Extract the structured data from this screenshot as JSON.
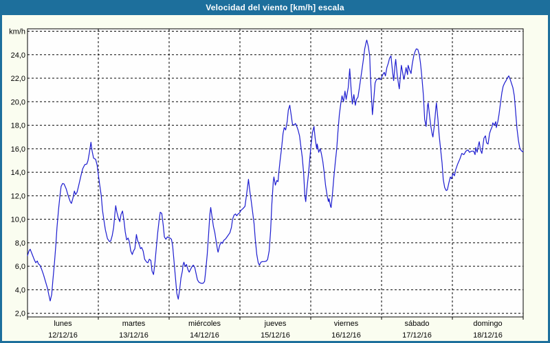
{
  "window": {
    "title": "Velocidad del viento [km/h] escala",
    "titlebar_color": "#1d6f9c",
    "panel_color": "#fafdf0"
  },
  "chart_data": {
    "type": "line",
    "title": "Velocidad del viento [km/h] escala",
    "unit_label": "km/h",
    "line_color": "#1b1bcf",
    "grid_color": "#000000",
    "plot_bg": "#fefefe",
    "ylim": [
      2,
      26
    ],
    "ytick_values": [
      24,
      22,
      20,
      18,
      16,
      14,
      12,
      10,
      8,
      6,
      4,
      2
    ],
    "ytick_labels": [
      "24,0",
      "22,0",
      "20,0",
      "18,0",
      "16,0",
      "14,0",
      "12,0",
      "10,0",
      "8,0",
      "6,0",
      "4,0",
      "2,0"
    ],
    "x_days": [
      {
        "day": "lunes",
        "date": "12/12/16"
      },
      {
        "day": "martes",
        "date": "13/12/16"
      },
      {
        "day": "miércoles",
        "date": "14/12/16"
      },
      {
        "day": "jueves",
        "date": "15/12/16"
      },
      {
        "day": "viernes",
        "date": "16/12/16"
      },
      {
        "day": "sábado",
        "date": "17/12/16"
      },
      {
        "day": "domingo",
        "date": "18/12/16"
      }
    ],
    "x_hours_range": [
      0,
      168
    ],
    "grid": "dashed",
    "points": [
      [
        0,
        6.9
      ],
      [
        0.5,
        7.3
      ],
      [
        0.9,
        7.45
      ],
      [
        1.6,
        7.0
      ],
      [
        2.3,
        6.55
      ],
      [
        2.8,
        6.3
      ],
      [
        3.3,
        6.45
      ],
      [
        3.7,
        6.2
      ],
      [
        4.2,
        6.1
      ],
      [
        4.7,
        5.8
      ],
      [
        5.4,
        5.3
      ],
      [
        6.1,
        4.7
      ],
      [
        6.8,
        4.1
      ],
      [
        7.2,
        3.6
      ],
      [
        7.7,
        3.05
      ],
      [
        8.2,
        3.6
      ],
      [
        8.6,
        4.8
      ],
      [
        9.1,
        6.2
      ],
      [
        9.6,
        7.8
      ],
      [
        10,
        9.3
      ],
      [
        10.5,
        10.8
      ],
      [
        11,
        12
      ],
      [
        11.4,
        12.8
      ],
      [
        11.9,
        13.05
      ],
      [
        12.4,
        13
      ],
      [
        13.1,
        12.6
      ],
      [
        13.8,
        12
      ],
      [
        14.5,
        11.5
      ],
      [
        14.9,
        11.35
      ],
      [
        15.4,
        11.8
      ],
      [
        15.9,
        12.4
      ],
      [
        16.3,
        12.1
      ],
      [
        16.8,
        12.3
      ],
      [
        17.3,
        12.8
      ],
      [
        18,
        13.6
      ],
      [
        18.7,
        14.3
      ],
      [
        19.4,
        14.65
      ],
      [
        20.1,
        14.7
      ],
      [
        20.5,
        15
      ],
      [
        21,
        15.7
      ],
      [
        21.5,
        16.55
      ],
      [
        21.9,
        15.8
      ],
      [
        22.4,
        15.2
      ],
      [
        23.1,
        15.1
      ],
      [
        23.6,
        14.6
      ],
      [
        24,
        13.8
      ],
      [
        24.5,
        12.9
      ],
      [
        25,
        12
      ],
      [
        25.4,
        10.8
      ],
      [
        25.9,
        9.9
      ],
      [
        26.4,
        9.1
      ],
      [
        27.1,
        8.35
      ],
      [
        27.8,
        8.1
      ],
      [
        28.2,
        8.15
      ],
      [
        28.7,
        8.6
      ],
      [
        29.2,
        9.3
      ],
      [
        29.6,
        10.4
      ],
      [
        29.9,
        11.15
      ],
      [
        30.3,
        10.6
      ],
      [
        30.8,
        10.1
      ],
      [
        31.3,
        9.8
      ],
      [
        31.7,
        10.4
      ],
      [
        32.2,
        10.7
      ],
      [
        32.7,
        9.9
      ],
      [
        33.1,
        8.95
      ],
      [
        33.6,
        8.25
      ],
      [
        34.1,
        8.4
      ],
      [
        34.5,
        8.1
      ],
      [
        35,
        7.3
      ],
      [
        35.5,
        7
      ],
      [
        35.9,
        7.3
      ],
      [
        36.4,
        7.5
      ],
      [
        36.9,
        8.7
      ],
      [
        37.3,
        8.2
      ],
      [
        37.8,
        7.9
      ],
      [
        38.3,
        7.5
      ],
      [
        38.7,
        7.6
      ],
      [
        39.2,
        7.3
      ],
      [
        39.7,
        6.6
      ],
      [
        40.4,
        6.35
      ],
      [
        40.8,
        6.3
      ],
      [
        41.3,
        6.6
      ],
      [
        41.8,
        6.5
      ],
      [
        42.2,
        5.6
      ],
      [
        42.7,
        5.3
      ],
      [
        43.2,
        6.3
      ],
      [
        43.6,
        7.4
      ],
      [
        44.1,
        8.8
      ],
      [
        44.6,
        9.9
      ],
      [
        45,
        10.6
      ],
      [
        45.5,
        10.5
      ],
      [
        46,
        9.5
      ],
      [
        46.4,
        8.5
      ],
      [
        46.9,
        8.3
      ],
      [
        47.4,
        8.5
      ],
      [
        47.8,
        8.45
      ],
      [
        48.3,
        8.4
      ],
      [
        48.8,
        8.3
      ],
      [
        49.2,
        7.7
      ],
      [
        49.7,
        6.3
      ],
      [
        50.2,
        4.9
      ],
      [
        50.6,
        3.7
      ],
      [
        51.1,
        3.2
      ],
      [
        51.6,
        4.1
      ],
      [
        52,
        5
      ],
      [
        52.5,
        5.6
      ],
      [
        52.7,
        6.1
      ],
      [
        53,
        6.35
      ],
      [
        53.4,
        6
      ],
      [
        53.9,
        6.15
      ],
      [
        54.4,
        5.7
      ],
      [
        54.8,
        5.5
      ],
      [
        55.3,
        5.75
      ],
      [
        55.8,
        6
      ],
      [
        56.2,
        6.1
      ],
      [
        56.7,
        5.9
      ],
      [
        57.2,
        5.3
      ],
      [
        57.6,
        4.85
      ],
      [
        58.1,
        4.65
      ],
      [
        58.8,
        4.55
      ],
      [
        59.5,
        4.55
      ],
      [
        60,
        4.7
      ],
      [
        60.4,
        5.6
      ],
      [
        60.9,
        7
      ],
      [
        61.4,
        8.8
      ],
      [
        61.8,
        10.4
      ],
      [
        62.1,
        11
      ],
      [
        62.5,
        10.3
      ],
      [
        63,
        9.4
      ],
      [
        63.5,
        8.85
      ],
      [
        63.9,
        8.2
      ],
      [
        64.4,
        7.4
      ],
      [
        64.6,
        7.2
      ],
      [
        65.1,
        7.75
      ],
      [
        65.6,
        8.05
      ],
      [
        66,
        7.95
      ],
      [
        66.5,
        8.2
      ],
      [
        67.2,
        8.35
      ],
      [
        67.9,
        8.6
      ],
      [
        68.6,
        8.85
      ],
      [
        69.1,
        9.3
      ],
      [
        69.5,
        10
      ],
      [
        70,
        10.35
      ],
      [
        70.5,
        10.45
      ],
      [
        70.9,
        10.3
      ],
      [
        71.4,
        10.45
      ],
      [
        71.9,
        10.55
      ],
      [
        72.3,
        10.75
      ],
      [
        73,
        10.9
      ],
      [
        73.7,
        11.1
      ],
      [
        74.2,
        12
      ],
      [
        74.7,
        13
      ],
      [
        74.9,
        13.4
      ],
      [
        75.4,
        12.3
      ],
      [
        75.8,
        11.6
      ],
      [
        76.3,
        10.6
      ],
      [
        76.8,
        9.6
      ],
      [
        77.2,
        8.3
      ],
      [
        77.7,
        7
      ],
      [
        78.2,
        6.3
      ],
      [
        78.6,
        6.1
      ],
      [
        79.1,
        6.35
      ],
      [
        79.6,
        6.4
      ],
      [
        80.3,
        6.4
      ],
      [
        81,
        6.45
      ],
      [
        81.4,
        6.6
      ],
      [
        81.9,
        7.3
      ],
      [
        82.4,
        9
      ],
      [
        82.8,
        11.2
      ],
      [
        83.3,
        13.2
      ],
      [
        83.5,
        13.6
      ],
      [
        84,
        12.9
      ],
      [
        84.5,
        13.3
      ],
      [
        84.9,
        13.2
      ],
      [
        85.2,
        14
      ],
      [
        85.6,
        15
      ],
      [
        86.1,
        16
      ],
      [
        86.6,
        17.3
      ],
      [
        87,
        17.8
      ],
      [
        87.5,
        17.6
      ],
      [
        88,
        18.3
      ],
      [
        88.4,
        19.3
      ],
      [
        88.9,
        19.7
      ],
      [
        89.4,
        18.8
      ],
      [
        89.8,
        18.1
      ],
      [
        90.3,
        18
      ],
      [
        90.8,
        18.15
      ],
      [
        91.2,
        17.95
      ],
      [
        91.7,
        17.6
      ],
      [
        92.2,
        17.1
      ],
      [
        92.6,
        16.3
      ],
      [
        93.1,
        15.3
      ],
      [
        93.6,
        13.9
      ],
      [
        94,
        12
      ],
      [
        94.3,
        11.5
      ],
      [
        94.7,
        12.6
      ],
      [
        95.2,
        13.8
      ],
      [
        95.7,
        15.2
      ],
      [
        96.1,
        16.3
      ],
      [
        96.6,
        17.4
      ],
      [
        97.1,
        17.9
      ],
      [
        97.5,
        16.9
      ],
      [
        98,
        16
      ],
      [
        98.2,
        16.4
      ],
      [
        98.7,
        15.7
      ],
      [
        99.2,
        16
      ],
      [
        99.6,
        15.6
      ],
      [
        100.1,
        14.9
      ],
      [
        100.6,
        13.9
      ],
      [
        101,
        12.9
      ],
      [
        101.5,
        12.1
      ],
      [
        102,
        11.5
      ],
      [
        102.2,
        11.75
      ],
      [
        102.7,
        11.1
      ],
      [
        102.9,
        11
      ],
      [
        103.4,
        12.3
      ],
      [
        103.8,
        13.5
      ],
      [
        104.3,
        14.8
      ],
      [
        104.8,
        16
      ],
      [
        105.2,
        17.4
      ],
      [
        105.7,
        18.9
      ],
      [
        106.2,
        19.9
      ],
      [
        106.6,
        20.5
      ],
      [
        107.1,
        20
      ],
      [
        107.6,
        20.9
      ],
      [
        108,
        20.2
      ],
      [
        108.7,
        21.2
      ],
      [
        109.2,
        22.8
      ],
      [
        109.7,
        21
      ],
      [
        110.1,
        19.8
      ],
      [
        110.6,
        20.6
      ],
      [
        111.1,
        19.7
      ],
      [
        111.5,
        20.2
      ],
      [
        112,
        20.4
      ],
      [
        112.5,
        21.2
      ],
      [
        112.9,
        21.9
      ],
      [
        113.4,
        22.8
      ],
      [
        113.9,
        23.7
      ],
      [
        114.3,
        24.5
      ],
      [
        114.8,
        25.1
      ],
      [
        115,
        25.25
      ],
      [
        115.5,
        24.7
      ],
      [
        116,
        23.9
      ],
      [
        116.2,
        22.3
      ],
      [
        116.7,
        19.9
      ],
      [
        116.9,
        18.9
      ],
      [
        117.4,
        20.3
      ],
      [
        117.8,
        21.6
      ],
      [
        118.3,
        21.9
      ],
      [
        119,
        21.95
      ],
      [
        119.7,
        21.9
      ],
      [
        120.4,
        22.3
      ],
      [
        120.9,
        22.5
      ],
      [
        121.3,
        22.2
      ],
      [
        121.8,
        22.9
      ],
      [
        122.3,
        23.3
      ],
      [
        122.7,
        23.7
      ],
      [
        123.2,
        23.9
      ],
      [
        123.7,
        22.6
      ],
      [
        124.1,
        21.8
      ],
      [
        124.6,
        23.2
      ],
      [
        124.8,
        23.6
      ],
      [
        125.3,
        22.3
      ],
      [
        125.8,
        21.4
      ],
      [
        126,
        21.1
      ],
      [
        126.5,
        22.5
      ],
      [
        126.7,
        23.1
      ],
      [
        127.2,
        22.4
      ],
      [
        127.6,
        21.9
      ],
      [
        128.1,
        22.6
      ],
      [
        128.3,
        22.9
      ],
      [
        128.8,
        22.3
      ],
      [
        129,
        23.1
      ],
      [
        129.5,
        22.7
      ],
      [
        130,
        22.4
      ],
      [
        130.4,
        23.2
      ],
      [
        130.9,
        23.9
      ],
      [
        131.4,
        24.3
      ],
      [
        131.8,
        24.5
      ],
      [
        132.3,
        24.45
      ],
      [
        132.8,
        24
      ],
      [
        133.2,
        23.3
      ],
      [
        133.7,
        22
      ],
      [
        134.2,
        20.5
      ],
      [
        134.6,
        18.5
      ],
      [
        135.1,
        17.9
      ],
      [
        135.6,
        19.7
      ],
      [
        135.8,
        19.9
      ],
      [
        136.3,
        18.7
      ],
      [
        136.7,
        17.9
      ],
      [
        137.2,
        17.2
      ],
      [
        137.4,
        17
      ],
      [
        137.9,
        18
      ],
      [
        138.4,
        19.5
      ],
      [
        138.6,
        19.9
      ],
      [
        139.1,
        18.5
      ],
      [
        139.5,
        17.2
      ],
      [
        140,
        16
      ],
      [
        140.5,
        14.8
      ],
      [
        140.9,
        13.4
      ],
      [
        141.4,
        12.7
      ],
      [
        141.9,
        12.45
      ],
      [
        142.3,
        12.5
      ],
      [
        142.8,
        13.1
      ],
      [
        143.3,
        13.6
      ],
      [
        143.7,
        13.45
      ],
      [
        144.2,
        13.9
      ],
      [
        144.7,
        13.7
      ],
      [
        145.1,
        14.2
      ],
      [
        145.8,
        14.7
      ],
      [
        146.5,
        15.1
      ],
      [
        147.2,
        15.6
      ],
      [
        147.9,
        15.5
      ],
      [
        148.6,
        15.8
      ],
      [
        149.3,
        15.9
      ],
      [
        149.8,
        15.7
      ],
      [
        150.5,
        15.8
      ],
      [
        151.2,
        15.8
      ],
      [
        151.7,
        15.5
      ],
      [
        151.9,
        16.1
      ],
      [
        152.4,
        15.7
      ],
      [
        152.8,
        16.3
      ],
      [
        153.1,
        16.6
      ],
      [
        153.5,
        15.9
      ],
      [
        154,
        15.6
      ],
      [
        154.7,
        16.9
      ],
      [
        155.2,
        17.1
      ],
      [
        155.6,
        16.5
      ],
      [
        156.1,
        16.4
      ],
      [
        156.6,
        17.3
      ],
      [
        157,
        17.6
      ],
      [
        157.5,
        17.9
      ],
      [
        157.7,
        18.2
      ],
      [
        158.2,
        18
      ],
      [
        158.7,
        18.3
      ],
      [
        158.9,
        17.8
      ],
      [
        159.4,
        18.3
      ],
      [
        159.8,
        18.9
      ],
      [
        160.3,
        19.9
      ],
      [
        160.8,
        20.8
      ],
      [
        161.2,
        21.3
      ],
      [
        161.7,
        21.6
      ],
      [
        162.2,
        21.8
      ],
      [
        162.6,
        22
      ],
      [
        163.1,
        22.2
      ],
      [
        163.6,
        21.9
      ],
      [
        164,
        21.6
      ],
      [
        164.5,
        21.2
      ],
      [
        165,
        20.5
      ],
      [
        165.4,
        19.3
      ],
      [
        165.9,
        17.7
      ],
      [
        166.4,
        16.7
      ],
      [
        166.8,
        16.1
      ],
      [
        167.3,
        15.85
      ],
      [
        167.8,
        15.75
      ],
      [
        168,
        15.8
      ]
    ]
  }
}
